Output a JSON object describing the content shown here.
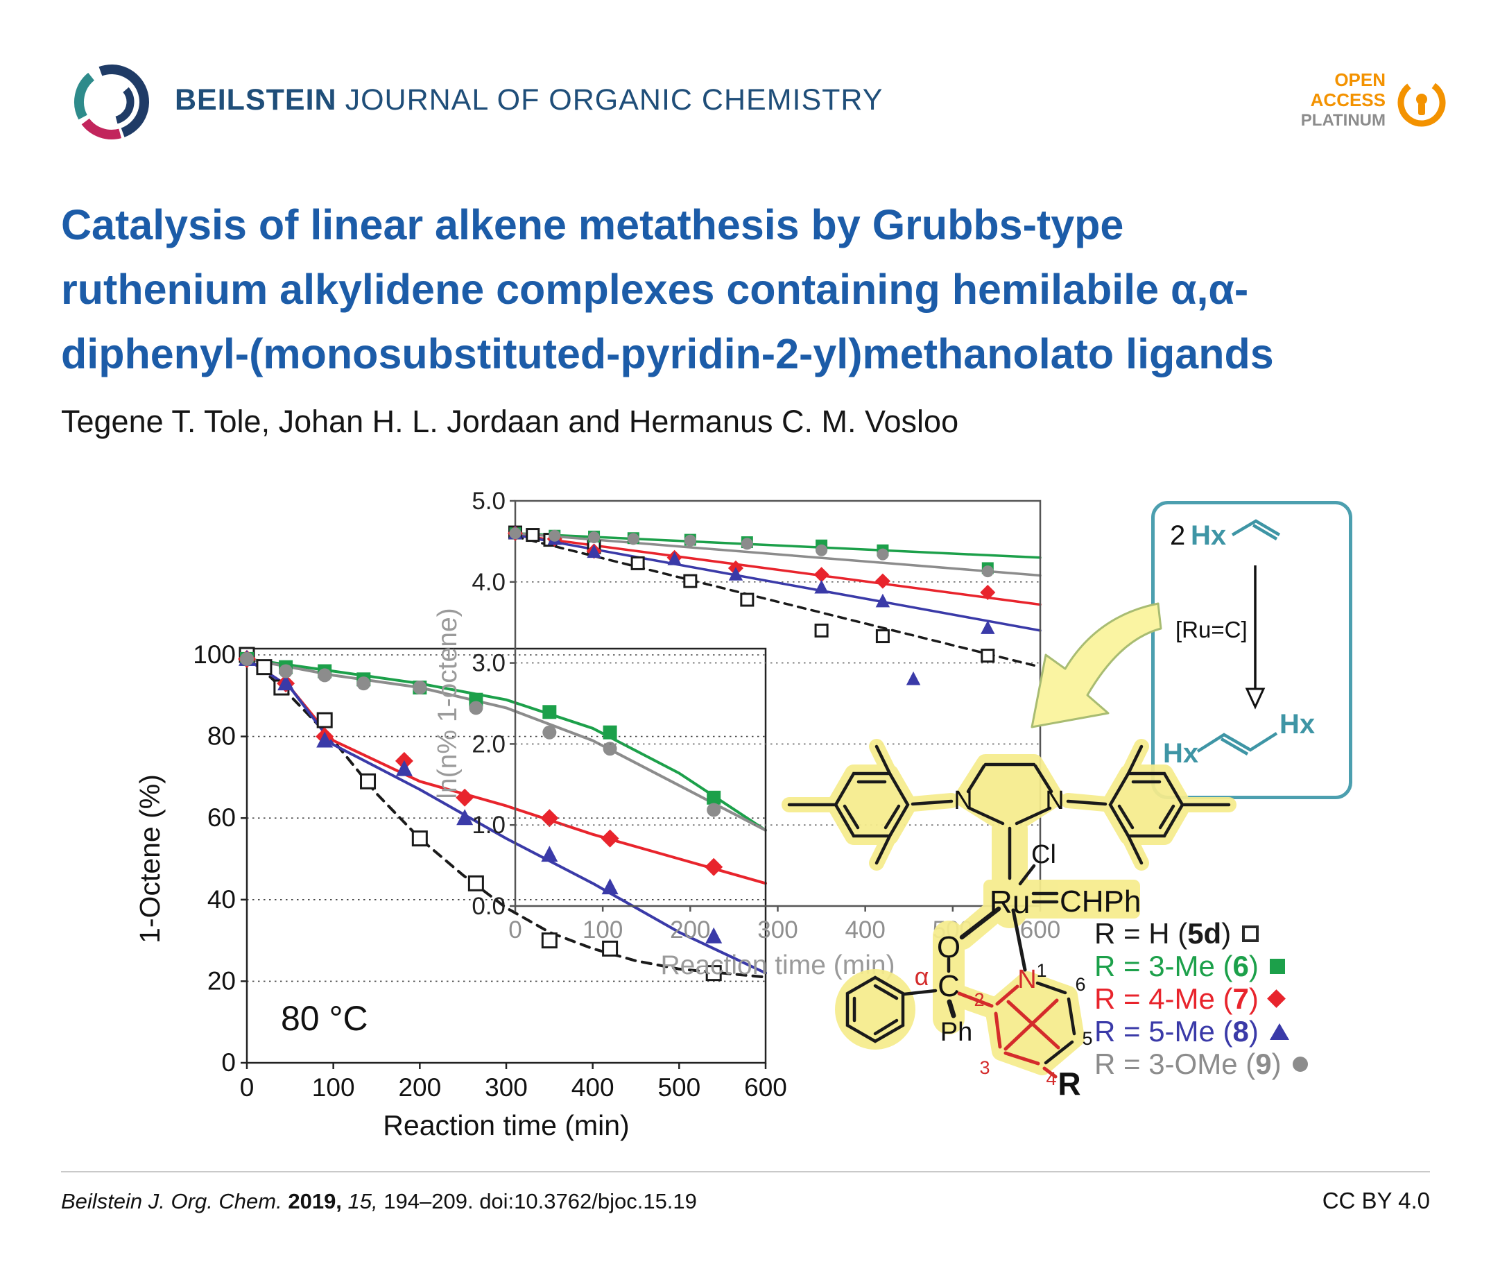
{
  "header": {
    "logo_icon": "beilstein-logo",
    "journal_name_bold": "BEILSTEIN",
    "journal_name_rest": "JOURNAL OF ORGANIC CHEMISTRY",
    "open_access": {
      "icon": "open-access-lock-icon",
      "line1": "OPEN",
      "line2": "ACCESS",
      "line3": "PLATINUM",
      "accent_color": "#F39200",
      "platinum_color": "#8C8C8C"
    }
  },
  "article": {
    "title_lines": [
      "Catalysis of linear alkene metathesis by Grubbs-type",
      "ruthenium alkylidene complexes containing hemilabile α,α-",
      "diphenyl-(monosubstituted-pyridin-2-yl)methanolato ligands"
    ],
    "title_color": "#1C5CA8",
    "authors": "Tegene T. Tole, Johan H. L. Jordaan and Hermanus C. M. Vosloo"
  },
  "scheme": {
    "reactant_coefficient": "2",
    "reactant_group": "Hx",
    "arrow_label": "[Ru=C]",
    "product_group_left": "Hx",
    "product_group_right": "Hx",
    "box_color": "#4C9FAF",
    "hx_color": "#3E95A5",
    "down_arrow_icon": "open-head-down-arrow",
    "curved_arrow_icon": "yellow-curved-arrow"
  },
  "molecule": {
    "n": "N",
    "ru": "Ru",
    "cl": "Cl",
    "carbene": "CHPh",
    "o": "O",
    "c": "C",
    "alpha": "α",
    "ph": "Ph",
    "r": "R",
    "nums": [
      "1",
      "2",
      "3",
      "4",
      "5",
      "6"
    ],
    "highlight_color": "#F6EC8C",
    "red_color": "#D42B2B"
  },
  "legend": {
    "rows": [
      {
        "prefix": "R = H (",
        "num": "5d",
        "suffix": ")",
        "color": "#1a1a1a",
        "marker": "square-open"
      },
      {
        "prefix": "R = 3-Me (",
        "num": "6",
        "suffix": ")",
        "color": "#1CA04A",
        "marker": "square"
      },
      {
        "prefix": "R = 4-Me (",
        "num": "7",
        "suffix": ")",
        "color": "#E8242C",
        "marker": "diamond"
      },
      {
        "prefix": "R = 5-Me (",
        "num": "8",
        "suffix": ")",
        "color": "#3A3AA8",
        "marker": "triangle"
      },
      {
        "prefix": "R = 3-OMe (",
        "num": "9",
        "suffix": ")",
        "color": "#8C8C8C",
        "marker": "circle"
      }
    ]
  },
  "chart_data": [
    {
      "type": "line",
      "title": "",
      "xlabel": "Reaction time (min)",
      "ylabel": "1-Octene (%)",
      "xlim": [
        0,
        600
      ],
      "ylim": [
        0,
        100
      ],
      "xticks": [
        0,
        100,
        200,
        300,
        400,
        500,
        600
      ],
      "yticks": [
        0,
        20,
        40,
        60,
        80,
        100
      ],
      "annotation": "80 °C",
      "grid": "horizontal-dotted",
      "legend_position": "outside-right",
      "series": [
        {
          "name": "R = H (5d)",
          "key": "5d",
          "color": "#1a1a1a",
          "marker": "square-open",
          "line": "dashed",
          "points": [
            [
              0,
              100
            ],
            [
              20,
              97
            ],
            [
              40,
              92
            ],
            [
              90,
              84
            ],
            [
              140,
              69
            ],
            [
              200,
              55
            ],
            [
              265,
              44
            ],
            [
              350,
              30
            ],
            [
              420,
              28
            ],
            [
              540,
              22
            ]
          ],
          "trend": [
            [
              0,
              100
            ],
            [
              50,
              90
            ],
            [
              100,
              79
            ],
            [
              150,
              66
            ],
            [
              200,
              55
            ],
            [
              250,
              46
            ],
            [
              300,
              38
            ],
            [
              350,
              32
            ],
            [
              400,
              28
            ],
            [
              450,
              25
            ],
            [
              500,
              23
            ],
            [
              550,
              22
            ],
            [
              600,
              21
            ]
          ]
        },
        {
          "name": "R = 3-Me (6)",
          "key": "6",
          "color": "#1CA04A",
          "marker": "square",
          "line": "solid",
          "points": [
            [
              0,
              99
            ],
            [
              45,
              97
            ],
            [
              90,
              96
            ],
            [
              135,
              94
            ],
            [
              200,
              92
            ],
            [
              265,
              89
            ],
            [
              350,
              86
            ],
            [
              420,
              81
            ],
            [
              540,
              65
            ]
          ],
          "trend": [
            [
              0,
              99
            ],
            [
              100,
              96
            ],
            [
              200,
              93
            ],
            [
              300,
              89
            ],
            [
              400,
              82
            ],
            [
              500,
              71
            ],
            [
              600,
              57
            ]
          ]
        },
        {
          "name": "R = 4-Me (7)",
          "key": "7",
          "color": "#E8242C",
          "marker": "diamond",
          "line": "solid",
          "points": [
            [
              0,
              99
            ],
            [
              45,
              93
            ],
            [
              90,
              80
            ],
            [
              182,
              74
            ],
            [
              252,
              65
            ],
            [
              350,
              60
            ],
            [
              420,
              55
            ],
            [
              540,
              48
            ]
          ],
          "trend": [
            [
              0,
              99
            ],
            [
              50,
              92
            ],
            [
              100,
              79
            ],
            [
              200,
              69
            ],
            [
              300,
              63
            ],
            [
              400,
              56
            ],
            [
              500,
              50
            ],
            [
              600,
              44
            ]
          ]
        },
        {
          "name": "R = 5-Me (8)",
          "key": "8",
          "color": "#3A3AA8",
          "marker": "triangle",
          "line": "solid",
          "points": [
            [
              0,
              99
            ],
            [
              45,
              93
            ],
            [
              90,
              79
            ],
            [
              182,
              72
            ],
            [
              252,
              60
            ],
            [
              350,
              51
            ],
            [
              420,
              43
            ],
            [
              540,
              31
            ]
          ],
          "trend": [
            [
              0,
              99
            ],
            [
              50,
              92
            ],
            [
              100,
              78
            ],
            [
              200,
              67
            ],
            [
              300,
              55
            ],
            [
              400,
              44
            ],
            [
              500,
              32
            ],
            [
              600,
              22
            ]
          ]
        },
        {
          "name": "R = 3-OMe (9)",
          "key": "9",
          "color": "#8C8C8C",
          "marker": "circle",
          "line": "solid",
          "points": [
            [
              0,
              99
            ],
            [
              45,
              96
            ],
            [
              90,
              95
            ],
            [
              135,
              93
            ],
            [
              200,
              92
            ],
            [
              265,
              87
            ],
            [
              350,
              81
            ],
            [
              420,
              77
            ],
            [
              540,
              62
            ]
          ],
          "trend": [
            [
              0,
              99
            ],
            [
              100,
              95
            ],
            [
              200,
              92
            ],
            [
              300,
              87
            ],
            [
              400,
              79
            ],
            [
              500,
              68
            ],
            [
              600,
              57
            ]
          ]
        }
      ]
    },
    {
      "type": "line",
      "title": "",
      "xlabel": "Reaction time (min)",
      "ylabel": "ln(n% 1-octene)",
      "xlim": [
        0,
        600
      ],
      "ylim": [
        0,
        5
      ],
      "xticks": [
        0,
        100,
        200,
        300,
        400,
        500,
        600
      ],
      "yticks": [
        0,
        1,
        2,
        3,
        4,
        5
      ],
      "grid": "horizontal-dotted",
      "series": [
        {
          "name": "R = H (5d)",
          "key": "5d",
          "color": "#1a1a1a",
          "marker": "square-open",
          "line": "dashed",
          "points": [
            [
              0,
              4.61
            ],
            [
              20,
              4.58
            ],
            [
              40,
              4.52
            ],
            [
              90,
              4.43
            ],
            [
              140,
              4.23
            ],
            [
              200,
              4.01
            ],
            [
              265,
              3.78
            ],
            [
              350,
              3.4
            ],
            [
              420,
              3.33
            ],
            [
              540,
              3.09
            ]
          ],
          "trend": [
            [
              0,
              4.56
            ],
            [
              600,
              2.95
            ]
          ]
        },
        {
          "name": "R = 3-Me (6)",
          "key": "6",
          "color": "#1CA04A",
          "marker": "square",
          "line": "solid",
          "points": [
            [
              0,
              4.6
            ],
            [
              45,
              4.57
            ],
            [
              90,
              4.56
            ],
            [
              135,
              4.54
            ],
            [
              200,
              4.52
            ],
            [
              265,
              4.49
            ],
            [
              350,
              4.45
            ],
            [
              420,
              4.39
            ],
            [
              540,
              4.17
            ]
          ],
          "trend": [
            [
              0,
              4.6
            ],
            [
              600,
              4.3
            ]
          ]
        },
        {
          "name": "R = 4-Me (7)",
          "key": "7",
          "color": "#E8242C",
          "marker": "diamond",
          "line": "solid",
          "points": [
            [
              0,
              4.6
            ],
            [
              45,
              4.53
            ],
            [
              90,
              4.38
            ],
            [
              182,
              4.3
            ],
            [
              252,
              4.17
            ],
            [
              350,
              4.09
            ],
            [
              420,
              4.01
            ],
            [
              540,
              3.87
            ]
          ],
          "trend": [
            [
              0,
              4.58
            ],
            [
              600,
              3.72
            ]
          ]
        },
        {
          "name": "R = 5-Me (8)",
          "key": "8",
          "color": "#3A3AA8",
          "marker": "triangle",
          "line": "solid",
          "points": [
            [
              0,
              4.6
            ],
            [
              45,
              4.53
            ],
            [
              90,
              4.37
            ],
            [
              182,
              4.28
            ],
            [
              252,
              4.09
            ],
            [
              350,
              3.93
            ],
            [
              420,
              3.76
            ],
            [
              455,
              2.8
            ],
            [
              540,
              3.43
            ]
          ],
          "trend": [
            [
              0,
              4.58
            ],
            [
              600,
              3.4
            ]
          ]
        },
        {
          "name": "R = 3-OMe (9)",
          "key": "9",
          "color": "#8C8C8C",
          "marker": "circle",
          "line": "solid",
          "points": [
            [
              0,
              4.6
            ],
            [
              45,
              4.57
            ],
            [
              90,
              4.55
            ],
            [
              135,
              4.53
            ],
            [
              200,
              4.51
            ],
            [
              265,
              4.47
            ],
            [
              350,
              4.39
            ],
            [
              420,
              4.34
            ],
            [
              540,
              4.13
            ]
          ],
          "trend": [
            [
              0,
              4.6
            ],
            [
              600,
              4.08
            ]
          ]
        }
      ]
    }
  ],
  "footer": {
    "citation_journal": "Beilstein J. Org. Chem.",
    "citation_year": "2019,",
    "citation_volume": "15,",
    "citation_pages": "194–209. doi:10.3762/bjoc.15.19",
    "license": "CC BY 4.0"
  }
}
